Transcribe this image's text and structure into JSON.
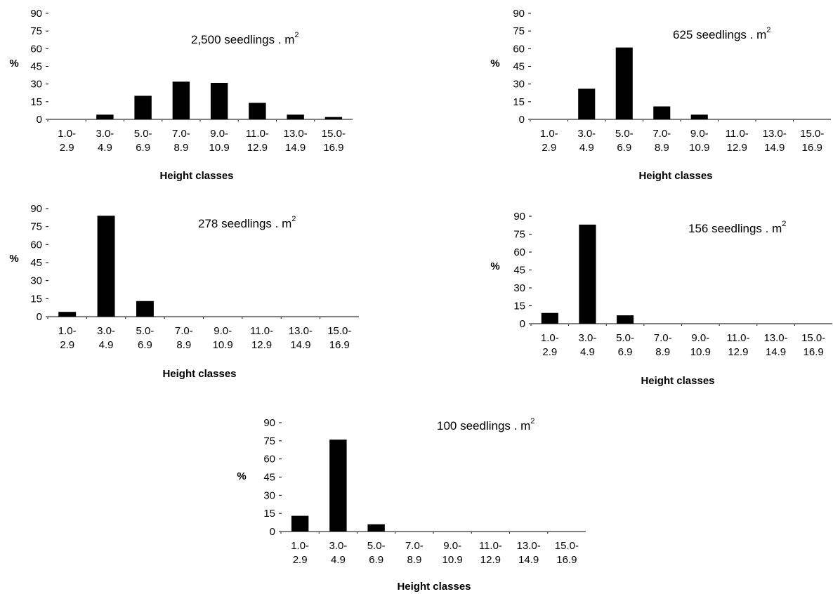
{
  "chart_data": [
    {
      "type": "bar",
      "title": "2,500 seedlings . m",
      "title_superscript": "2",
      "xlabel": "Height classes",
      "ylabel": "%",
      "ylim": [
        0,
        90
      ],
      "yticks": [
        "0",
        "15",
        "30",
        "45",
        "60",
        "75",
        "90"
      ],
      "categories": [
        [
          "1.0-",
          "2.9"
        ],
        [
          "3.0-",
          "4.9"
        ],
        [
          "5.0-",
          "6.9"
        ],
        [
          "7.0-",
          "8.9"
        ],
        [
          "9.0-",
          "10.9"
        ],
        [
          "11.0-",
          "12.9"
        ],
        [
          "13.0-",
          "14.9"
        ],
        [
          "15.0-",
          "16.9"
        ]
      ],
      "values": [
        0,
        4,
        20,
        32,
        31,
        14,
        4,
        2
      ],
      "bar_color": "#000000",
      "grid": false
    },
    {
      "type": "bar",
      "title": "625 seedlings . m",
      "title_superscript": "2",
      "xlabel": "Height classes",
      "ylabel": "%",
      "ylim": [
        0,
        90
      ],
      "yticks": [
        "0",
        "15",
        "30",
        "45",
        "60",
        "75",
        "90"
      ],
      "categories": [
        [
          "1.0-",
          "2.9"
        ],
        [
          "3.0-",
          "4.9"
        ],
        [
          "5.0-",
          "6.9"
        ],
        [
          "7.0-",
          "8.9"
        ],
        [
          "9.0-",
          "10.9"
        ],
        [
          "11.0-",
          "12.9"
        ],
        [
          "13.0-",
          "14.9"
        ],
        [
          "15.0-",
          "16.9"
        ]
      ],
      "values": [
        0,
        26,
        61,
        11,
        4,
        0,
        0,
        0
      ],
      "bar_color": "#000000",
      "grid": false
    },
    {
      "type": "bar",
      "title": "278 seedlings . m",
      "title_superscript": "2",
      "xlabel": "Height classes",
      "ylabel": "%",
      "ylim": [
        0,
        90
      ],
      "yticks": [
        "0",
        "15",
        "30",
        "45",
        "60",
        "75",
        "90"
      ],
      "categories": [
        [
          "1.0-",
          "2.9"
        ],
        [
          "3.0-",
          "4.9"
        ],
        [
          "5.0-",
          "6.9"
        ],
        [
          "7.0-",
          "8.9"
        ],
        [
          "9.0-",
          "10.9"
        ],
        [
          "11.0-",
          "12.9"
        ],
        [
          "13.0-",
          "14.9"
        ],
        [
          "15.0-",
          "16.9"
        ]
      ],
      "values": [
        4,
        84,
        13,
        0,
        0,
        0,
        0,
        0
      ],
      "bar_color": "#000000",
      "grid": false
    },
    {
      "type": "bar",
      "title": "156 seedlings . m",
      "title_superscript": "2",
      "xlabel": "Height classes",
      "ylabel": "%",
      "ylim": [
        0,
        90
      ],
      "yticks": [
        "0",
        "15",
        "30",
        "45",
        "60",
        "75",
        "90"
      ],
      "categories": [
        [
          "1.0-",
          "2.9"
        ],
        [
          "3.0-",
          "4.9"
        ],
        [
          "5.0-",
          "6.9"
        ],
        [
          "7.0-",
          "8.9"
        ],
        [
          "9.0-",
          "10.9"
        ],
        [
          "11.0-",
          "12.9"
        ],
        [
          "13.0-",
          "14.9"
        ],
        [
          "15.0-",
          "16.9"
        ]
      ],
      "values": [
        9,
        83,
        7,
        0,
        0,
        0,
        0,
        0
      ],
      "bar_color": "#000000",
      "grid": false
    },
    {
      "type": "bar",
      "title": "100 seedlings . m",
      "title_superscript": "2",
      "xlabel": "Height classes",
      "ylabel": "%",
      "ylim": [
        0,
        90
      ],
      "yticks": [
        "0",
        "15",
        "30",
        "45",
        "60",
        "75",
        "90"
      ],
      "categories": [
        [
          "1.0-",
          "2.9"
        ],
        [
          "3.0-",
          "4.9"
        ],
        [
          "5.0-",
          "6.9"
        ],
        [
          "7.0-",
          "8.9"
        ],
        [
          "9.0-",
          "10.9"
        ],
        [
          "11.0-",
          "12.9"
        ],
        [
          "13.0-",
          "14.9"
        ],
        [
          "15.0-",
          "16.9"
        ]
      ],
      "values": [
        13,
        76,
        6,
        0,
        0,
        0,
        0,
        0
      ],
      "bar_color": "#000000",
      "grid": false
    }
  ]
}
